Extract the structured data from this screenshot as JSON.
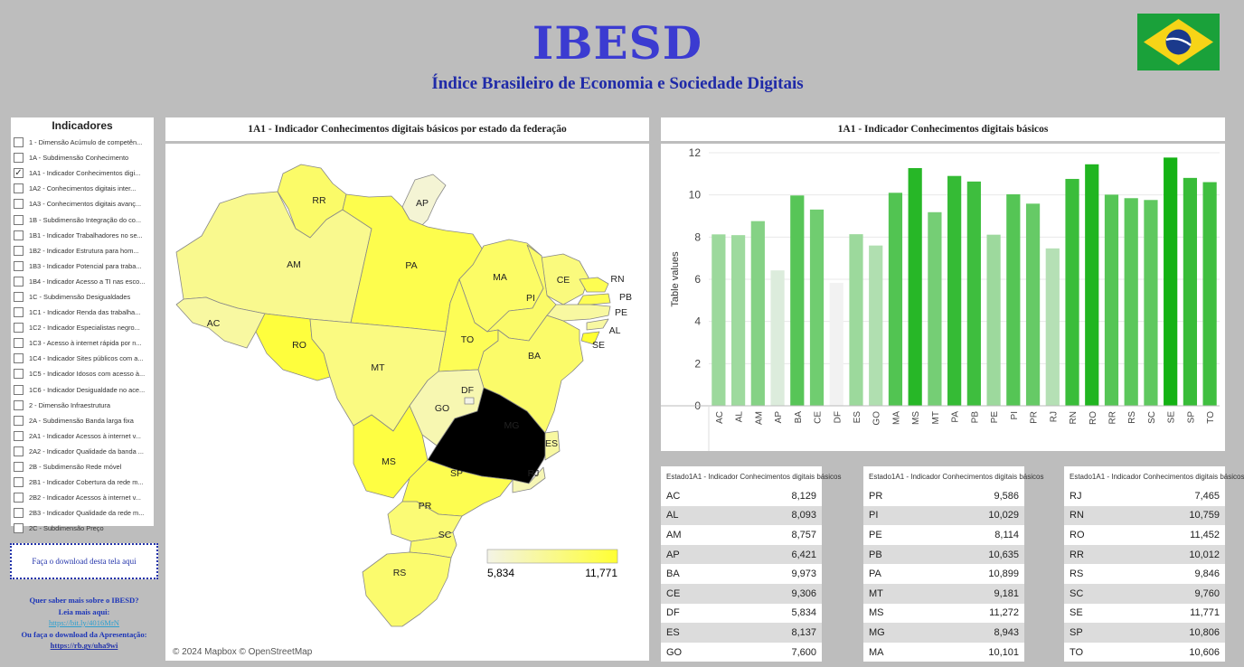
{
  "header": {
    "title": "IBESD",
    "subtitle": "Índice Brasileiro de Economia e Sociedade Digitais",
    "flag": "brazil-flag"
  },
  "indicators": {
    "title": "Indicadores",
    "items": [
      {
        "label": "1 - Dimensão Acúmulo de competên...",
        "checked": false
      },
      {
        "label": "1A - Subdimensão Conhecimento",
        "checked": false
      },
      {
        "label": "1A1 - Indicador Conhecimentos digi...",
        "checked": true
      },
      {
        "label": "1A2 - Conhecimentos digitais inter...",
        "checked": false
      },
      {
        "label": "1A3 - Conhecimentos digitais avanç...",
        "checked": false
      },
      {
        "label": "1B - Subdimensão Integração do co...",
        "checked": false
      },
      {
        "label": "1B1 - Indicador Trabalhadores no se...",
        "checked": false
      },
      {
        "label": "1B2 - Indicador Estrutura para hom...",
        "checked": false
      },
      {
        "label": "1B3 - Indicador Potencial para traba...",
        "checked": false
      },
      {
        "label": "1B4 - Indicador Acesso a TI nas esco...",
        "checked": false
      },
      {
        "label": "1C - Subdimensão Desigualdades",
        "checked": false
      },
      {
        "label": "1C1 - Indicador Renda das trabalha...",
        "checked": false
      },
      {
        "label": "1C2 - Indicador Especialistas negro...",
        "checked": false
      },
      {
        "label": "1C3 - Acesso à internet rápida por n...",
        "checked": false
      },
      {
        "label": "1C4 - Indicador Sites públicos com a...",
        "checked": false
      },
      {
        "label": "1C5 - Indicador Idosos com acesso à...",
        "checked": false
      },
      {
        "label": "1C6 - Indicador Desigualdade no ace...",
        "checked": false
      },
      {
        "label": "2 - Dimensão Infraestrutura",
        "checked": false
      },
      {
        "label": "2A - Subdimensão Banda larga fixa",
        "checked": false
      },
      {
        "label": "2A1 - Indicador Acessos à internet v...",
        "checked": false
      },
      {
        "label": "2A2 - Indicador Qualidade da banda ...",
        "checked": false
      },
      {
        "label": "2B - Subdimensão Rede móvel",
        "checked": false
      },
      {
        "label": "2B1 - Indicador Cobertura da rede m...",
        "checked": false
      },
      {
        "label": "2B2 - Indicador Acessos à internet v...",
        "checked": false
      },
      {
        "label": "2B3 - Indicador Qualidade da rede m...",
        "checked": false
      },
      {
        "label": "2C - Subdimensão Preço",
        "checked": false
      }
    ]
  },
  "download": {
    "label": "Faça o download desta tela aqui"
  },
  "info": {
    "line1": "Quer saber mais sobre o IBESD?",
    "line2": "Leia mais aqui:",
    "link1": "https://bit.ly/4016MrN",
    "line3": "Ou faça o download da Apresentação:",
    "link2": "https://rb.gy/uha9wi"
  },
  "map": {
    "title": "1A1 - Indicador Conhecimentos digitais básicos por estado da federação",
    "legend_min": "5,834",
    "legend_max": "11,771",
    "attribution": "© 2024 Mapbox © OpenStreetMap",
    "color_low": "#f3f3e6",
    "color_high": "#ffff33",
    "state_labels": [
      "RR",
      "AP",
      "AM",
      "PA",
      "MA",
      "CE",
      "RN",
      "PB",
      "PE",
      "AL",
      "SE",
      "PI",
      "AC",
      "RO",
      "TO",
      "BA",
      "MT",
      "DF",
      "GO",
      "MG",
      "ES",
      "MS",
      "SP",
      "RJ",
      "PR",
      "SC",
      "RS"
    ]
  },
  "chart_data": {
    "type": "bar",
    "title": "1A1 - Indicador Conhecimentos digitais básicos",
    "ylabel": "Table values",
    "xlabel": "",
    "ylim": [
      0,
      12
    ],
    "yticks": [
      "0",
      "2",
      "4",
      "6",
      "8",
      "10",
      "12"
    ],
    "grid": true,
    "categories": [
      "AC",
      "AL",
      "AM",
      "AP",
      "BA",
      "CE",
      "DF",
      "ES",
      "GO",
      "MA",
      "MS",
      "MT",
      "PA",
      "PB",
      "PE",
      "PI",
      "PR",
      "RJ",
      "RN",
      "RO",
      "RR",
      "RS",
      "SC",
      "SE",
      "SP",
      "TO"
    ],
    "values": [
      8.129,
      8.093,
      8.757,
      6.421,
      9.973,
      9.306,
      5.834,
      8.137,
      7.6,
      10.101,
      11.272,
      9.181,
      10.899,
      10.635,
      8.114,
      10.029,
      9.586,
      7.465,
      10.759,
      11.452,
      10.012,
      9.846,
      9.76,
      11.771,
      10.806,
      10.606
    ],
    "color_low": "#f2f2f2",
    "color_high": "#14b214"
  },
  "tables": {
    "col_state": "Estado",
    "col_value": "1A1 - Indicador Conhecimentos digitais básicos",
    "groups": [
      [
        [
          "AC",
          "8,129"
        ],
        [
          "AL",
          "8,093"
        ],
        [
          "AM",
          "8,757"
        ],
        [
          "AP",
          "6,421"
        ],
        [
          "BA",
          "9,973"
        ],
        [
          "CE",
          "9,306"
        ],
        [
          "DF",
          "5,834"
        ],
        [
          "ES",
          "8,137"
        ],
        [
          "GO",
          "7,600"
        ]
      ],
      [
        [
          "PR",
          "9,586"
        ],
        [
          "PI",
          "10,029"
        ],
        [
          "PE",
          "8,114"
        ],
        [
          "PB",
          "10,635"
        ],
        [
          "PA",
          "10,899"
        ],
        [
          "MT",
          "9,181"
        ],
        [
          "MS",
          "11,272"
        ],
        [
          "MG",
          "8,943"
        ],
        [
          "MA",
          "10,101"
        ]
      ],
      [
        [
          "RJ",
          "7,465"
        ],
        [
          "RN",
          "10,759"
        ],
        [
          "RO",
          "11,452"
        ],
        [
          "RR",
          "10,012"
        ],
        [
          "RS",
          "9,846"
        ],
        [
          "SC",
          "9,760"
        ],
        [
          "SE",
          "11,771"
        ],
        [
          "SP",
          "10,806"
        ],
        [
          "TO",
          "10,606"
        ]
      ]
    ]
  }
}
